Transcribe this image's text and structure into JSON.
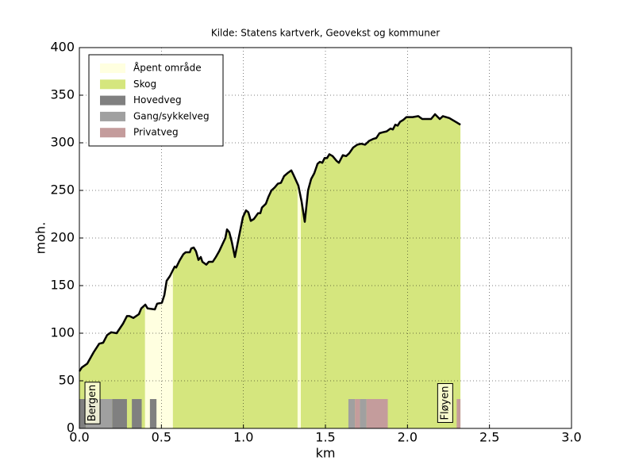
{
  "chart_data": {
    "type": "line",
    "title": "Kilde: Statens kartverk, Geovekst og kommuner",
    "xlabel": "km",
    "ylabel": "moh.",
    "xlim": [
      0,
      3
    ],
    "ylim": [
      0,
      400
    ],
    "xticks": [
      {
        "value": 0,
        "label": "0.0"
      },
      0.5,
      {
        "value": 1,
        "label": "1.0"
      },
      1.5,
      {
        "value": 2,
        "label": "2.0"
      },
      2.5,
      {
        "value": 3,
        "label": "3.0"
      }
    ],
    "yticks": [
      0,
      50,
      100,
      150,
      200,
      250,
      300,
      350,
      400
    ],
    "grid": true,
    "legend": "upper left",
    "line_color": "#000000",
    "x": [
      0,
      0.015,
      0.048,
      0.087,
      0.121,
      0.145,
      0.169,
      0.194,
      0.227,
      0.266,
      0.29,
      0.305,
      0.329,
      0.363,
      0.377,
      0.402,
      0.416,
      0.46,
      0.474,
      0.503,
      0.518,
      0.532,
      0.552,
      0.581,
      0.59,
      0.61,
      0.634,
      0.648,
      0.673,
      0.682,
      0.697,
      0.711,
      0.726,
      0.74,
      0.75,
      0.774,
      0.789,
      0.813,
      0.832,
      0.852,
      0.871,
      0.89,
      0.9,
      0.914,
      0.929,
      0.948,
      0.977,
      0.997,
      1.016,
      1.03,
      1.045,
      1.064,
      1.089,
      1.103,
      1.113,
      1.137,
      1.152,
      1.171,
      1.19,
      1.21,
      1.229,
      1.248,
      1.268,
      1.292,
      1.306,
      1.335,
      1.355,
      1.374,
      1.394,
      1.413,
      1.432,
      1.452,
      1.466,
      1.481,
      1.495,
      1.51,
      1.524,
      1.544,
      1.568,
      1.582,
      1.606,
      1.626,
      1.645,
      1.669,
      1.694,
      1.718,
      1.742,
      1.766,
      1.79,
      1.81,
      1.829,
      1.848,
      1.873,
      1.897,
      1.911,
      1.926,
      1.94,
      1.955,
      1.974,
      1.994,
      2.032,
      2.066,
      2.09,
      2.144,
      2.168,
      2.197,
      2.216,
      2.255,
      2.294,
      2.323
    ],
    "values": [
      60,
      64,
      68,
      80,
      89,
      90,
      98,
      101,
      100,
      110,
      118,
      118,
      116,
      120,
      126,
      130,
      126,
      125,
      131,
      132,
      140,
      155,
      160,
      170,
      169,
      176,
      183,
      185,
      185,
      189,
      190,
      186,
      177,
      180,
      175,
      172,
      175,
      175,
      180,
      186,
      193,
      200,
      209,
      206,
      196,
      180,
      205,
      222,
      229,
      227,
      218,
      220,
      226,
      226,
      232,
      236,
      243,
      250,
      253,
      257,
      258,
      265,
      268,
      271,
      266,
      255,
      238,
      217,
      250,
      262,
      268,
      278,
      280,
      279,
      284,
      284,
      288,
      286,
      281,
      279,
      287,
      286,
      289,
      295,
      298,
      299,
      298,
      302,
      304,
      305,
      310,
      311,
      312,
      315,
      314,
      319,
      318,
      322,
      324,
      327,
      327,
      328,
      325,
      325,
      330,
      325,
      328,
      326,
      322,
      319
    ],
    "series": [
      {
        "name": "Åpent område",
        "color": "#ffffe0",
        "kind": "cover",
        "ranges": [
          [
            0.4,
            0.57
          ],
          [
            1.33,
            1.35
          ]
        ]
      },
      {
        "name": "Skog",
        "color": "#d5e67e",
        "kind": "cover",
        "ranges": [
          [
            0,
            0.4
          ],
          [
            0.57,
            1.33
          ],
          [
            1.35,
            2.323
          ]
        ]
      },
      {
        "name": "Hovedveg",
        "color": "#808080",
        "kind": "road",
        "ranges": [
          [
            0,
            0.04
          ],
          [
            0.2,
            0.29
          ],
          [
            0.32,
            0.38
          ],
          [
            0.43,
            0.47
          ]
        ]
      },
      {
        "name": "Gang/sykkelveg",
        "color": "#a0a0a0",
        "kind": "road",
        "ranges": [
          [
            0.04,
            0.2
          ],
          [
            1.64,
            1.68
          ],
          [
            1.71,
            1.75
          ]
        ]
      },
      {
        "name": "Privatveg",
        "color": "#c49c9c",
        "kind": "road",
        "ranges": [
          [
            1.68,
            1.71
          ],
          [
            1.75,
            1.88
          ],
          [
            2.3,
            2.323
          ]
        ]
      }
    ],
    "annotations": [
      {
        "text": "Bergen",
        "x": 0.08
      },
      {
        "text": "Fløyen",
        "x": 2.23
      }
    ]
  }
}
